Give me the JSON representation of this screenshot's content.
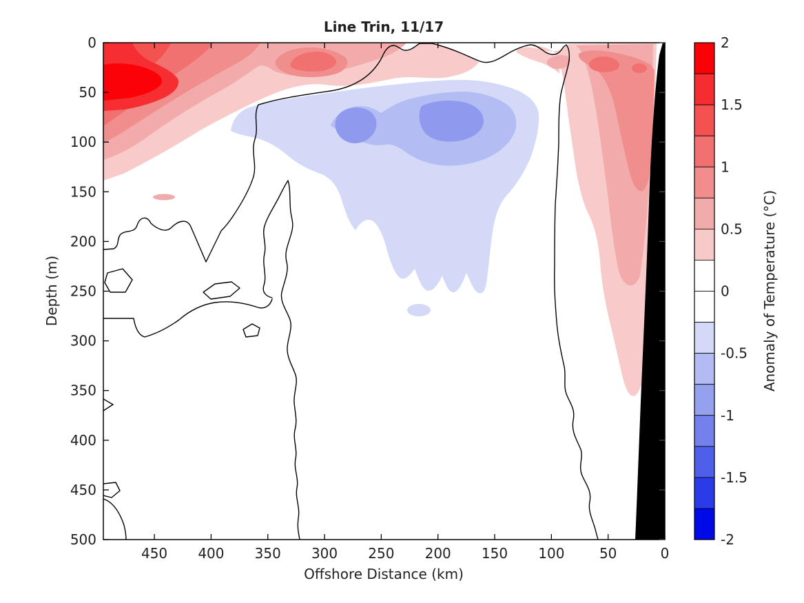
{
  "title": "Line Trin, 11/17",
  "axes": {
    "x": {
      "label": "Offshore Distance (km)",
      "min": 0,
      "max": 495,
      "reversed": true,
      "ticks": [
        450,
        400,
        350,
        300,
        250,
        200,
        150,
        100,
        50,
        0
      ]
    },
    "y": {
      "label": "Depth (m)",
      "min": 0,
      "max": 500,
      "ticks": [
        0,
        50,
        100,
        150,
        200,
        250,
        300,
        350,
        400,
        450,
        500
      ]
    }
  },
  "colorbar": {
    "label": "Anomaly of Temperature (°C)",
    "min": -2,
    "max": 2,
    "tick_values": [
      2,
      1.5,
      1,
      0.5,
      0,
      -0.5,
      -1,
      -1.5,
      -2
    ],
    "tick_labels": [
      "2",
      "1.5",
      "1",
      "0.5",
      "0",
      "-0.5",
      "-1",
      "-1.5",
      "-2"
    ],
    "segment_step": 0.25,
    "segment_colors_top_to_bottom": [
      "#FB0007",
      "#F52D30",
      "#F45150",
      "#F27170",
      "#F18E8D",
      "#F0ABAA",
      "#F7C9C8",
      "#FFFFFF",
      "#FFFFFF",
      "#D3D9F7",
      "#B3BCF2",
      "#95A0EF",
      "#7481ED",
      "#505FEA",
      "#2A3BE8",
      "#0009E8"
    ]
  },
  "colors": {
    "background": "#FFFFFF",
    "axis": "#000000",
    "text": "#1F1F1F",
    "contour_line": "#000000",
    "land": "#000000",
    "band_p025_05": "#F8CBCA",
    "band_p05_075": "#F2ABAA",
    "band_p075_1": "#F08E8D",
    "band_p1_125": "#F17170",
    "band_p125_15": "#F45251",
    "band_p15_175": "#F62E31",
    "band_p175_2": "#FB0108",
    "band_n025_05": "#D3D9F7",
    "band_n05_075": "#B3BCF3",
    "band_n075_1": "#8F9AEE"
  },
  "chart_data": {
    "type": "filled_contour",
    "title": "Line Trin, 11/17",
    "xlabel": "Offshore Distance (km)",
    "ylabel": "Depth (m)",
    "colorbar_label": "Anomaly of Temperature (°C)",
    "x_axis_reversed": true,
    "xlim": [
      495,
      0
    ],
    "ylim_depth": [
      0,
      500
    ],
    "anomaly_range": [
      -2,
      2
    ],
    "contour_interval": 0.25,
    "zero_contour": "black solid line",
    "land_mask": "black wedge at coast (x near 0 km), widening from ~5 km offshore at surface to ~27 km offshore at 500 m depth",
    "x_km": [
      500,
      450,
      400,
      350,
      300,
      250,
      200,
      150,
      100,
      50,
      0
    ],
    "depth_m": [
      0,
      25,
      50,
      75,
      100,
      150,
      200,
      250,
      300,
      350,
      400,
      450,
      500
    ],
    "anomaly_grid_degC": [
      [
        1.6,
        1.5,
        1.1,
        0.9,
        1.2,
        0.7,
        0.2,
        0.3,
        0.2,
        0.6,
        0.9
      ],
      [
        2.0,
        1.9,
        1.2,
        0.9,
        1.3,
        0.7,
        0.3,
        0.2,
        0.4,
        1.1,
        1.2
      ],
      [
        1.8,
        1.4,
        0.7,
        0.4,
        0.5,
        0.2,
        0.0,
        0.0,
        0.3,
        0.9,
        1.0
      ],
      [
        0.8,
        0.6,
        0.2,
        -0.4,
        -0.7,
        -0.6,
        -1.0,
        -0.4,
        0.0,
        0.7,
        0.8
      ],
      [
        0.6,
        0.5,
        0.1,
        -0.5,
        -0.6,
        -0.9,
        -0.8,
        -0.4,
        0.0,
        0.5,
        0.7
      ],
      [
        0.4,
        0.3,
        0.0,
        -0.2,
        -0.4,
        -0.5,
        -0.5,
        -0.3,
        0.0,
        0.4,
        0.5
      ],
      [
        0.1,
        0.0,
        0.0,
        -0.1,
        -0.3,
        -0.4,
        -0.4,
        -0.2,
        0.0,
        0.4,
        0.4
      ],
      [
        0.0,
        0.0,
        0.0,
        -0.1,
        -0.2,
        -0.3,
        -0.3,
        -0.1,
        0.0,
        0.3,
        0.3
      ],
      [
        0.0,
        0.0,
        0.0,
        0.0,
        -0.1,
        -0.1,
        -0.2,
        0.0,
        0.0,
        0.3,
        0.2
      ],
      [
        0.0,
        0.0,
        0.0,
        0.0,
        0.0,
        -0.1,
        0.0,
        0.0,
        0.0,
        0.2,
        0.1
      ],
      [
        0.0,
        0.0,
        0.0,
        0.0,
        0.0,
        0.0,
        0.0,
        0.0,
        0.0,
        0.1,
        0.1
      ],
      [
        0.0,
        0.0,
        0.0,
        0.0,
        0.0,
        0.0,
        0.0,
        0.0,
        0.0,
        0.1,
        0.1
      ],
      [
        0.0,
        0.0,
        0.0,
        0.0,
        0.0,
        0.0,
        0.0,
        0.0,
        0.0,
        0.1,
        0.0
      ]
    ],
    "notable_features": [
      "Strong warm anomaly (>1.75 degC) at surface, 430-500 km offshore, 10-60 m depth",
      "Secondary warm surface patch (~1-1.25 degC) near 300 km offshore",
      "Warm coastal band (~1 degC core at ~40-60 km, 20-55 m) extending down-slope to ~350 m",
      "Cold anomaly lens (-0.75 to -1 degC cores) near 270 km and 185 km offshore at 60-100 m depth",
      "Weak cold tongue (-0.25 to -0.5 degC) extending to ~270 m between 150 and 270 km",
      "Meandering zero contour in mostly-neutral deep water on the offshore side"
    ]
  }
}
